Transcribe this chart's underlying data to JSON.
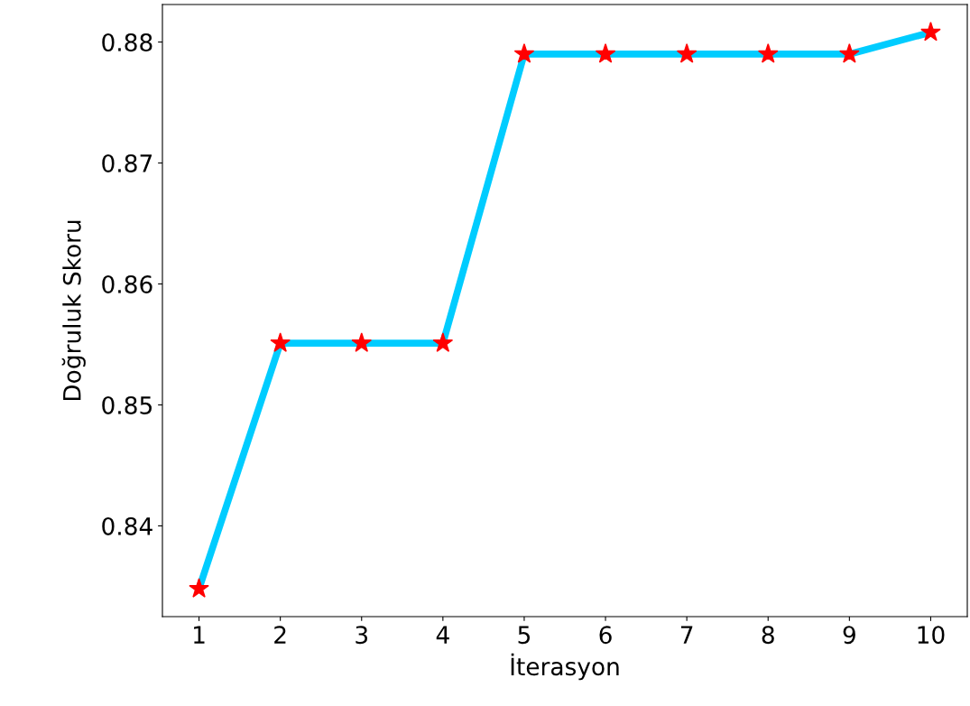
{
  "chart_data": {
    "type": "line",
    "xlabel": "İterasyon",
    "ylabel": "Doğruluk Skoru",
    "x": [
      1,
      2,
      3,
      4,
      5,
      6,
      7,
      8,
      9,
      10
    ],
    "series": [
      {
        "color": "#00ccff",
        "values": [
          0.8348,
          0.8551,
          0.8551,
          0.8551,
          0.879,
          0.879,
          0.879,
          0.879,
          0.879,
          0.8808
        ]
      }
    ],
    "xlim": [
      0.55,
      10.45
    ],
    "xticks": [
      1,
      2,
      3,
      4,
      5,
      6,
      7,
      8,
      9,
      10
    ],
    "ylim": [
      0.8325,
      0.8831
    ],
    "yticks": [
      0.84,
      0.85,
      0.86,
      0.87,
      0.88
    ],
    "marker": "star",
    "grid": false,
    "legend": false
  }
}
